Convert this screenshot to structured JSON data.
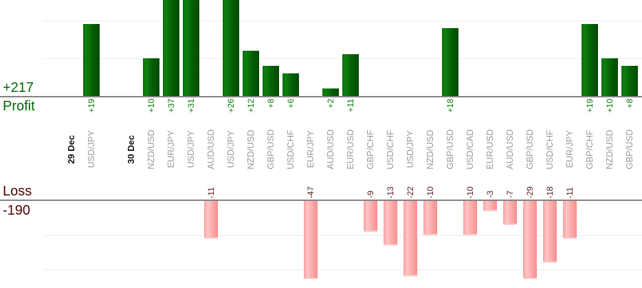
{
  "chart_data": {
    "type": "bar",
    "title": "",
    "description": "Daily trade-by-trade profit and loss bar chart, profits above upper axis, losses below lower axis",
    "sections": {
      "profit": {
        "label": "Profit",
        "total": "+217",
        "text_color": "#006600",
        "value_text_color": "#007700",
        "bar_color": "#0a6f0a"
      },
      "loss": {
        "label": "Loss",
        "total": "-190",
        "text_color": "#4d0000",
        "value_text_color": "#571414",
        "bar_color": "#f9a2a2"
      }
    },
    "columns": [
      {
        "kind": "date",
        "label": "29 Dec"
      },
      {
        "kind": "trade",
        "pair": "USD/JPY",
        "value": 19
      },
      {
        "kind": "spacer"
      },
      {
        "kind": "date",
        "label": "30 Dec"
      },
      {
        "kind": "trade",
        "pair": "NZD/USD",
        "value": 10
      },
      {
        "kind": "trade",
        "pair": "EUR/JPY",
        "value": 37
      },
      {
        "kind": "trade",
        "pair": "USD/JPY",
        "value": 31
      },
      {
        "kind": "trade",
        "pair": "AUD/USD",
        "value": -11
      },
      {
        "kind": "trade",
        "pair": "USD/JPY",
        "value": 26
      },
      {
        "kind": "trade",
        "pair": "NZD/USD",
        "value": 12
      },
      {
        "kind": "trade",
        "pair": "GBP/USD",
        "value": 8
      },
      {
        "kind": "trade",
        "pair": "USD/CHF",
        "value": 6
      },
      {
        "kind": "trade",
        "pair": "EUR/JPY",
        "value": -47
      },
      {
        "kind": "trade",
        "pair": "AUD/USD",
        "value": 2
      },
      {
        "kind": "trade",
        "pair": "EUR/USD",
        "value": 11
      },
      {
        "kind": "trade",
        "pair": "GBP/CHF",
        "value": -9
      },
      {
        "kind": "trade",
        "pair": "USD/CHF",
        "value": -13
      },
      {
        "kind": "trade",
        "pair": "USD/JPY",
        "value": -22
      },
      {
        "kind": "trade",
        "pair": "NZD/USD",
        "value": -10
      },
      {
        "kind": "trade",
        "pair": "GBP/USD",
        "value": 18
      },
      {
        "kind": "trade",
        "pair": "USD/CAD",
        "value": -10
      },
      {
        "kind": "trade",
        "pair": "EUR/USD",
        "value": -3
      },
      {
        "kind": "trade",
        "pair": "AUD/USD",
        "value": -7
      },
      {
        "kind": "trade",
        "pair": "GBP/USD",
        "value": -29
      },
      {
        "kind": "trade",
        "pair": "USD/CHF",
        "value": -18
      },
      {
        "kind": "trade",
        "pair": "EUR/JPY",
        "value": -11
      },
      {
        "kind": "trade",
        "pair": "GBP/CHF",
        "value": 19
      },
      {
        "kind": "trade",
        "pair": "NZD/USD",
        "value": 10
      },
      {
        "kind": "trade",
        "pair": "GBP/USD",
        "value": 8
      }
    ],
    "colors": {
      "category_label": "#999999",
      "date_label": "#111111",
      "gridline": "#ececec",
      "axis_line": "#828282",
      "background": "#ffffff"
    },
    "layout_hints": {
      "legend": "none",
      "grid": "horizontal, every 10 units",
      "profit_gridline_values": [
        10,
        20
      ],
      "loss_gridline_values": [
        -10,
        -20
      ],
      "profit_bars_clipped_above": 25,
      "loss_bars_clipped_below": -23,
      "label_rotation": "90deg counterclockwise, read bottom-to-top"
    }
  }
}
